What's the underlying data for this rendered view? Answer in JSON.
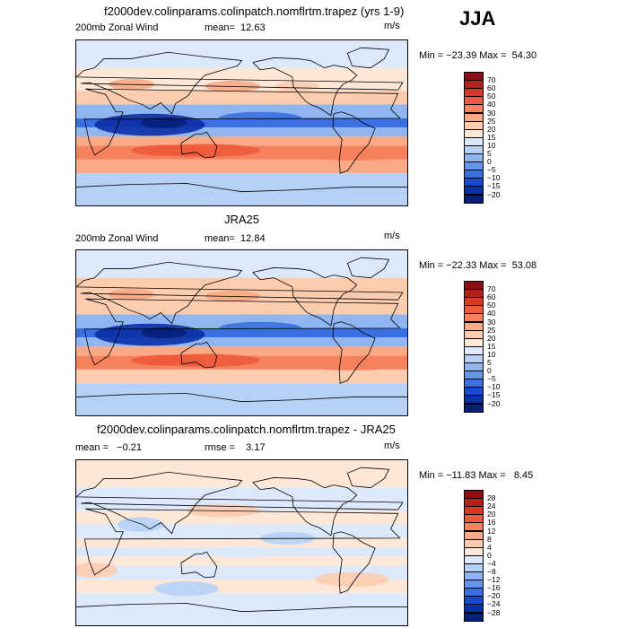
{
  "season": "JJA",
  "panels": [
    {
      "title": "f2000dev.colinparams.colinpatch.nomflrtm.trapez (yrs 1-9)",
      "left_label": "200mb Zonal Wind",
      "stat1": "mean=  12.63",
      "units": "m/s",
      "minmax": "Min = −23.39 Max =  54.30",
      "colorbar": {
        "labels": [
          "70",
          "60",
          "50",
          "40",
          "30",
          "25",
          "20",
          "15",
          "10",
          "5",
          "0",
          "−5",
          "−10",
          "−15",
          "−20"
        ],
        "colors": [
          "#8b0f12",
          "#b5201b",
          "#d73a24",
          "#ee5a3b",
          "#f6825d",
          "#f9a985",
          "#fcccaf",
          "#fde8d8",
          "#dbe9fb",
          "#b6d1f7",
          "#8fb6f0",
          "#6395ea",
          "#3b70e2",
          "#1b48d0",
          "#0b2fa6",
          "#06207a"
        ]
      }
    },
    {
      "title": "JRA25",
      "left_label": "200mb Zonal Wind",
      "stat1": "mean=  12.84",
      "units": "m/s",
      "minmax": "Min = −22.33 Max =  53.08",
      "colorbar": {
        "labels": [
          "70",
          "60",
          "50",
          "40",
          "30",
          "25",
          "20",
          "15",
          "10",
          "5",
          "0",
          "−5",
          "−10",
          "−15",
          "−20"
        ],
        "colors": [
          "#8b0f12",
          "#b5201b",
          "#d73a24",
          "#ee5a3b",
          "#f6825d",
          "#f9a985",
          "#fcccaf",
          "#fde8d8",
          "#dbe9fb",
          "#b6d1f7",
          "#8fb6f0",
          "#6395ea",
          "#3b70e2",
          "#1b48d0",
          "#0b2fa6",
          "#06207a"
        ]
      }
    },
    {
      "title": "f2000dev.colinparams.colinpatch.nomflrtm.trapez - JRA25",
      "left_label": "mean =   −0.21",
      "stat1": "rmse =    3.17",
      "units": "m/s",
      "minmax": "Min = −11.83 Max =   8.45",
      "colorbar": {
        "labels": [
          "28",
          "24",
          "20",
          "16",
          "12",
          "8",
          "4",
          "0",
          "−4",
          "−8",
          "−12",
          "−16",
          "−20",
          "−24",
          "−28"
        ],
        "colors": [
          "#8b0f12",
          "#b5201b",
          "#d73a24",
          "#ee5a3b",
          "#f6825d",
          "#f9a985",
          "#fcccaf",
          "#fde8d8",
          "#dbe9fb",
          "#b6d1f7",
          "#8fb6f0",
          "#6395ea",
          "#3b70e2",
          "#1b48d0",
          "#0b2fa6",
          "#06207a"
        ]
      }
    }
  ],
  "chart_data": [
    {
      "type": "heatmap",
      "title": "f2000dev.colinparams.colinpatch.nomflrtm.trapez (yrs 1-9)",
      "variable": "200mb Zonal Wind",
      "units": "m/s",
      "mean": 12.63,
      "min": -23.39,
      "max": 54.3,
      "levels": [
        -20,
        -15,
        -10,
        -5,
        0,
        5,
        10,
        15,
        20,
        25,
        30,
        40,
        50,
        60,
        70
      ],
      "zonal_bands": [
        {
          "lat": [
            60,
            90
          ],
          "value": 12
        },
        {
          "lat": [
            35,
            60
          ],
          "value": 18
        },
        {
          "lat": [
            20,
            35
          ],
          "value": 22
        },
        {
          "lat": [
            5,
            20
          ],
          "value": 3
        },
        {
          "lat": [
            -5,
            5
          ],
          "value": -8
        },
        {
          "lat": [
            -15,
            -5
          ],
          "value": 2
        },
        {
          "lat": [
            -25,
            -15
          ],
          "value": 25
        },
        {
          "lat": [
            -40,
            -25
          ],
          "value": 35
        },
        {
          "lat": [
            -55,
            -40
          ],
          "value": 25
        },
        {
          "lat": [
            -90,
            -55
          ],
          "value": 8
        }
      ]
    },
    {
      "type": "heatmap",
      "title": "JRA25",
      "variable": "200mb Zonal Wind",
      "units": "m/s",
      "mean": 12.84,
      "min": -22.33,
      "max": 53.08,
      "levels": [
        -20,
        -15,
        -10,
        -5,
        0,
        5,
        10,
        15,
        20,
        25,
        30,
        40,
        50,
        60,
        70
      ],
      "zonal_bands": [
        {
          "lat": [
            60,
            90
          ],
          "value": 10
        },
        {
          "lat": [
            35,
            60
          ],
          "value": 20
        },
        {
          "lat": [
            20,
            35
          ],
          "value": 24
        },
        {
          "lat": [
            5,
            20
          ],
          "value": 2
        },
        {
          "lat": [
            -5,
            5
          ],
          "value": -10
        },
        {
          "lat": [
            -15,
            -5
          ],
          "value": 3
        },
        {
          "lat": [
            -25,
            -15
          ],
          "value": 26
        },
        {
          "lat": [
            -40,
            -25
          ],
          "value": 36
        },
        {
          "lat": [
            -55,
            -40
          ],
          "value": 24
        },
        {
          "lat": [
            -90,
            -55
          ],
          "value": 8
        }
      ]
    },
    {
      "type": "heatmap",
      "title": "f2000dev.colinparams.colinpatch.nomflrtm.trapez - JRA25",
      "variable": "difference",
      "units": "m/s",
      "mean": -0.21,
      "rmse": 3.17,
      "min": -11.83,
      "max": 8.45,
      "levels": [
        -28,
        -24,
        -20,
        -16,
        -12,
        -8,
        -4,
        0,
        4,
        8,
        12,
        16,
        20,
        24,
        28
      ],
      "zonal_bands": [
        {
          "lat": [
            60,
            90
          ],
          "value": 2
        },
        {
          "lat": [
            35,
            60
          ],
          "value": -2
        },
        {
          "lat": [
            20,
            35
          ],
          "value": 2
        },
        {
          "lat": [
            5,
            20
          ],
          "value": -2
        },
        {
          "lat": [
            -5,
            5
          ],
          "value": 2
        },
        {
          "lat": [
            -15,
            -5
          ],
          "value": -2
        },
        {
          "lat": [
            -25,
            -15
          ],
          "value": 2
        },
        {
          "lat": [
            -40,
            -25
          ],
          "value": -2
        },
        {
          "lat": [
            -55,
            -40
          ],
          "value": 2
        },
        {
          "lat": [
            -90,
            -55
          ],
          "value": -2
        }
      ]
    }
  ]
}
